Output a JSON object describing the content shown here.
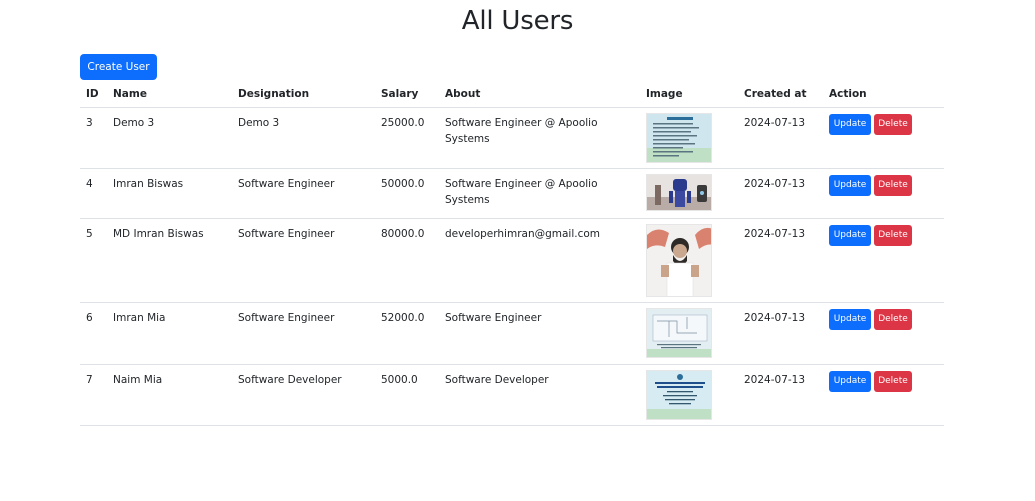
{
  "page": {
    "title": "All Users"
  },
  "toolbar": {
    "create_label": "Create User"
  },
  "table": {
    "headers": {
      "id": "ID",
      "name": "Name",
      "designation": "Designation",
      "salary": "Salary",
      "about": "About",
      "image": "Image",
      "created_at": "Created at",
      "action": "Action"
    },
    "rows": [
      {
        "id": "3",
        "name": "Demo 3",
        "designation": "Demo 3",
        "salary": "25000.0",
        "about": "Software Engineer @ Apoolio Systems",
        "created_at": "2024-07-13",
        "update_label": "Update",
        "delete_label": "Delete"
      },
      {
        "id": "4",
        "name": "Imran Biswas",
        "designation": "Software Engineer",
        "salary": "50000.0",
        "about": "Software Engineer @ Apoolio Systems",
        "created_at": "2024-07-13",
        "update_label": "Update",
        "delete_label": "Delete"
      },
      {
        "id": "5",
        "name": "MD Imran Biswas",
        "designation": "Software Engineer",
        "salary": "80000.0",
        "about": "developerhimran@gmail.com",
        "created_at": "2024-07-13",
        "update_label": "Update",
        "delete_label": "Delete"
      },
      {
        "id": "6",
        "name": "Imran Mia",
        "designation": "Software Engineer",
        "salary": "52000.0",
        "about": "Software Engineer",
        "created_at": "2024-07-13",
        "update_label": "Update",
        "delete_label": "Delete"
      },
      {
        "id": "7",
        "name": "Naim Mia",
        "designation": "Software Developer",
        "salary": "5000.0",
        "about": "Software Developer",
        "created_at": "2024-07-13",
        "update_label": "Update",
        "delete_label": "Delete"
      }
    ]
  },
  "colors": {
    "primary": "#0d6efd",
    "danger": "#dc3545",
    "border": "#dee2e6",
    "text": "#212529"
  }
}
